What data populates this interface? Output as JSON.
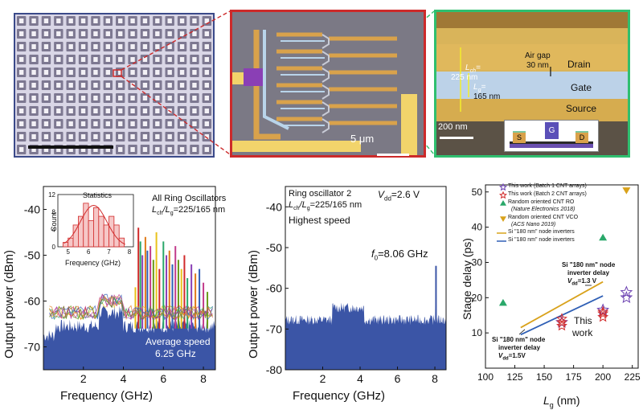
{
  "figure": {
    "scale_bar_5um": "5 μm",
    "tem": {
      "drain": "Drain",
      "gate": "Gate",
      "source": "Source",
      "lch": "L",
      "lch_sub": "ch",
      "lch_value": "225 nm",
      "lg": "L",
      "lg_sub": "g",
      "lg_value": "165 nm",
      "airgap_line1": "Air gap",
      "airgap_line2": "30 nm",
      "scale": "200 nm",
      "inset_s": "S",
      "inset_g": "G",
      "inset_d": "D"
    },
    "colors": {
      "ro_border": "#cc2a2a",
      "tem_border": "#2fbf6f",
      "array_border": "#3b4a8a",
      "spectrum_fill": "#3b55a6",
      "gate_blue": "#b9d4ea",
      "electrode_gold": "#d9a24b"
    }
  },
  "chart_data": [
    {
      "type": "area",
      "title": "All Ring Oscillators",
      "subtitle_prefix": "L",
      "subtitle_sub1": "ch",
      "subtitle_slash": "/L",
      "subtitle_sub2": "g",
      "subtitle_suffix": "=225/165 nm",
      "xlabel": "Frequency (GHz)",
      "ylabel": "Output power (dBm)",
      "xlim": [
        0,
        8.6
      ],
      "ylim": [
        -75,
        -35
      ],
      "xticks": [
        2,
        4,
        6,
        8
      ],
      "yticks": [
        -40,
        -50,
        -60,
        -70
      ],
      "annotation_line1": "Average speed",
      "annotation_line2": "6.25 GHz",
      "peaks_ghz": [
        4.6,
        4.75,
        4.85,
        4.95,
        5.1,
        5.2,
        5.35,
        5.5,
        5.65,
        5.8,
        6.0,
        6.15,
        6.3,
        6.45,
        6.6,
        6.75,
        6.9,
        7.05,
        7.2,
        7.4,
        7.6,
        7.8,
        8.0,
        8.2
      ],
      "peak_levels_dbm": [
        -57,
        -44,
        -47,
        -50,
        -46,
        -49,
        -48,
        -51,
        -45,
        -53,
        -47,
        -50,
        -49,
        -52,
        -48,
        -51,
        -53,
        -50,
        -55,
        -52,
        -54,
        -53,
        -56,
        -58
      ],
      "inset": {
        "type": "bar",
        "title": "Statistics",
        "xlabel": "Frequency (GHz)",
        "ylabel": "Count",
        "xlim": [
          4.5,
          8.2
        ],
        "ylim": [
          0,
          12
        ],
        "xticks": [
          5,
          6,
          7,
          8
        ],
        "yticks": [
          0,
          4,
          8,
          12
        ],
        "bin_edges": [
          4.75,
          5.0,
          5.25,
          5.5,
          5.75,
          6.0,
          6.25,
          6.5,
          6.75,
          7.0,
          7.25,
          7.5,
          7.75
        ],
        "counts": [
          1,
          2,
          5,
          7,
          10,
          6,
          9,
          7,
          5,
          7,
          5,
          2
        ]
      }
    },
    {
      "type": "area",
      "title": "Ring oscillator 2",
      "subtitle_prefix": "L",
      "subtitle_sub1": "ch",
      "subtitle_slash": "/L",
      "subtitle_sub2": "g",
      "subtitle_suffix": "=225/165 nm",
      "vdd_prefix": "V",
      "vdd_sub": "dd",
      "vdd_suffix": "=2.6 V",
      "note": "Highest speed",
      "f0_prefix": "f",
      "f0_sub": "0",
      "f0_suffix": "=8.06 GHz",
      "xlabel": "Frequency (GHz)",
      "ylabel": "Output power (dBm)",
      "xlim": [
        0,
        8.6
      ],
      "ylim": [
        -80,
        -35
      ],
      "xticks": [
        2,
        4,
        6,
        8
      ],
      "yticks": [
        -40,
        -50,
        -60,
        -70,
        -80
      ],
      "peak_x": 8.06,
      "peak_y": -54.5
    },
    {
      "type": "scatter",
      "xlabel_prefix": "L",
      "xlabel_sub": "g",
      "xlabel_suffix": " (nm)",
      "ylabel": "Stage delay (ps)",
      "xlim": [
        100,
        230
      ],
      "ylim": [
        0,
        52
      ],
      "xticks": [
        100,
        125,
        150,
        175,
        200,
        225
      ],
      "yticks": [
        10,
        20,
        30,
        40,
        50
      ],
      "legend": [
        {
          "label": "This work (Batch 1 CNT arrays)",
          "marker": "star-open",
          "color": "#6a3fb0"
        },
        {
          "label": "This work (Batch 2 CNT arrays)",
          "marker": "star-open",
          "color": "#d12a2a"
        },
        {
          "label": "Random oriented CNT RO",
          "marker": "triangle-up",
          "color": "#2aa86a"
        },
        {
          "label": "(Nature Electronics 2018)",
          "marker": "none",
          "color": "#222222"
        },
        {
          "label": "Random oriented CNT VCO",
          "marker": "triangle-down",
          "color": "#d9a21b"
        },
        {
          "label": "(ACS Nano 2019)",
          "marker": "none",
          "color": "#222222"
        },
        {
          "label": "Si \"180 nm\" node inverters",
          "marker": "line",
          "color": "#d9a21b"
        },
        {
          "label": "Si \"180 nm\" node inverters",
          "marker": "line",
          "color": "#2f5fb5"
        }
      ],
      "series": [
        {
          "name": "This work (Batch 1 CNT arrays)",
          "x": [
            165,
            200,
            220,
            220
          ],
          "y": [
            13,
            16.5,
            20,
            21.5
          ]
        },
        {
          "name": "This work (Batch 2 CNT arrays)",
          "x": [
            165,
            165,
            165,
            200,
            200,
            200
          ],
          "y": [
            12,
            13,
            14,
            14.5,
            15.5,
            16
          ]
        },
        {
          "name": "Random oriented CNT RO",
          "x": [
            115,
            200
          ],
          "y": [
            18.5,
            37
          ]
        },
        {
          "name": "Random oriented CNT VCO",
          "x": [
            220
          ],
          "y": [
            50.5
          ]
        },
        {
          "name": "Si \"180 nm\" node inverters (1.3 V)",
          "x": [
            130,
            200
          ],
          "y": [
            11.5,
            24.5
          ]
        },
        {
          "name": "Si \"180 nm\" node inverters (1.5 V)",
          "x": [
            130,
            200
          ],
          "y": [
            9.5,
            20.5
          ]
        }
      ],
      "annotation_top_line1": "Si \"180 nm\" node",
      "annotation_top_line2": "inverter delay",
      "annotation_top_v_prefix": "V",
      "annotation_top_v_sub": "dd",
      "annotation_top_v_suffix": "=1.3 V",
      "annotation_bottom_line1": "Si \"180 nm\" node",
      "annotation_bottom_line2": "inverter delay",
      "annotation_bottom_v_prefix": "V",
      "annotation_bottom_v_sub": "dd",
      "annotation_bottom_v_suffix": "=1.5V",
      "annotation_thiswork_line1": "This",
      "annotation_thiswork_line2": "work"
    }
  ]
}
